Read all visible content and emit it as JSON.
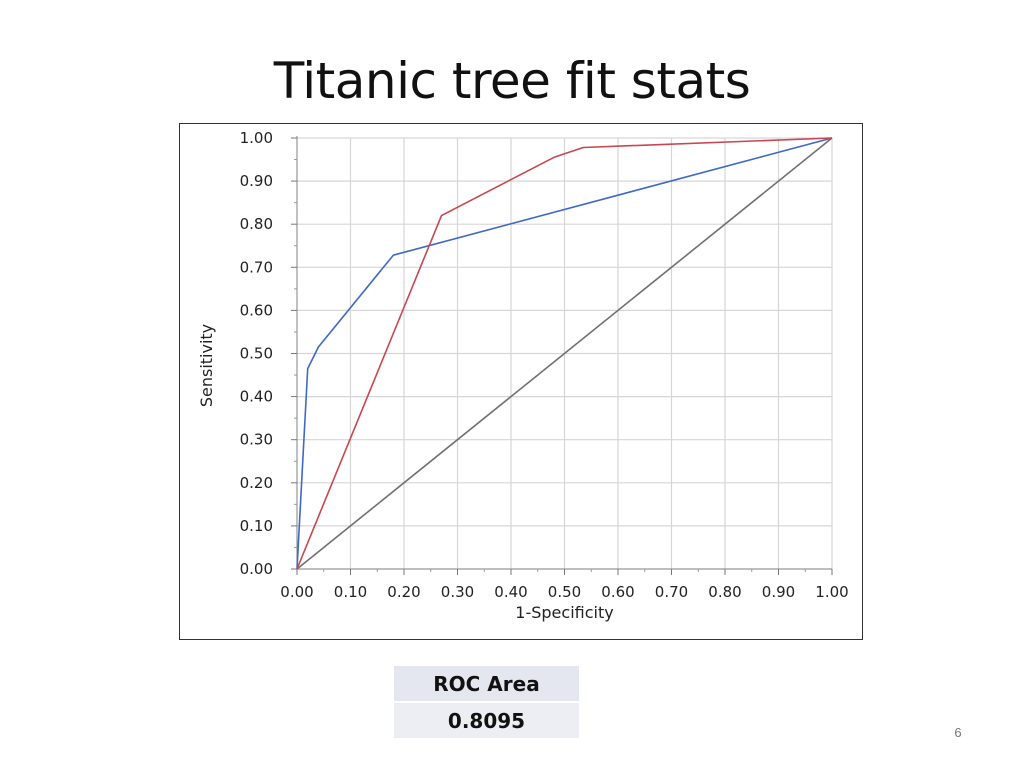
{
  "slide": {
    "title": "Titanic tree fit stats",
    "page_number": "6"
  },
  "roc_table": {
    "header": "ROC Area",
    "value": "0.8095"
  },
  "colors": {
    "red_series": "#c8464f",
    "blue_series": "#3f69c6",
    "reference": "#707070",
    "grid": "#d6d6d6"
  },
  "chart_data": {
    "type": "line",
    "title": "",
    "xlabel": "1-Specificity",
    "ylabel": "Sensitivity",
    "xlim": [
      0,
      1
    ],
    "ylim": [
      0,
      1
    ],
    "grid": true,
    "x_ticks": [
      "0.00",
      "0.10",
      "0.20",
      "0.30",
      "0.40",
      "0.50",
      "0.60",
      "0.70",
      "0.80",
      "0.90",
      "1.00"
    ],
    "y_ticks": [
      "0.00",
      "0.10",
      "0.20",
      "0.30",
      "0.40",
      "0.50",
      "0.60",
      "0.70",
      "0.80",
      "0.90",
      "1.00"
    ],
    "series": [
      {
        "color": "#c8464f",
        "points": [
          [
            0,
            0
          ],
          [
            0.27,
            0.82
          ],
          [
            0.48,
            0.955
          ],
          [
            0.535,
            0.978
          ],
          [
            1.0,
            1.0
          ]
        ]
      },
      {
        "color": "#3f69c6",
        "points": [
          [
            0,
            0
          ],
          [
            0.02,
            0.465
          ],
          [
            0.04,
            0.515
          ],
          [
            0.18,
            0.728
          ],
          [
            1.0,
            1.0
          ]
        ]
      },
      {
        "color": "#707070",
        "points": [
          [
            0,
            0
          ],
          [
            1.0,
            1.0
          ]
        ]
      }
    ]
  }
}
